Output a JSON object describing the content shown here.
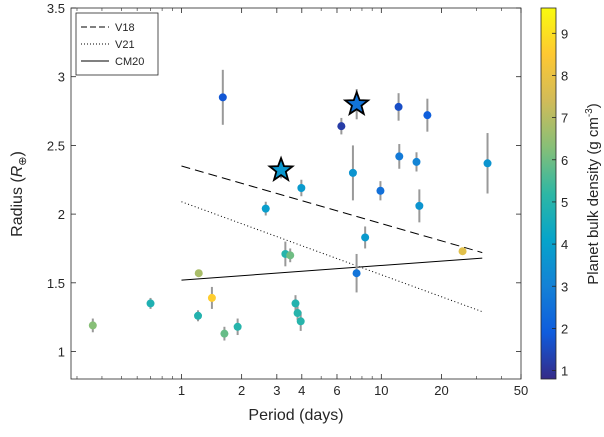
{
  "chart_data": {
    "type": "scatter",
    "xlabel": "Period (days)",
    "ylabel_main": "Radius (",
    "ylabel_sym": "R",
    "ylabel_sub": "⊕",
    "ylabel_close": ")",
    "x_scale": "log",
    "xlim": [
      0.28,
      50
    ],
    "ylim": [
      0.8,
      3.5
    ],
    "x_ticks": [
      1,
      2,
      3,
      4,
      6,
      10,
      20,
      50
    ],
    "x_tick_labels": [
      "1",
      "2",
      "3",
      "4",
      "6",
      "10",
      "20",
      "50"
    ],
    "y_ticks": [
      1,
      1.5,
      2,
      2.5,
      3,
      3.5
    ],
    "y_tick_labels": [
      "1",
      "1.5",
      "2",
      "2.5",
      "3",
      "3.5"
    ],
    "grid": false,
    "legend_position": "top-left",
    "lines": [
      {
        "name": "V18",
        "style": "dashed",
        "x": [
          1,
          32
        ],
        "y": [
          2.35,
          1.72
        ]
      },
      {
        "name": "V21",
        "style": "dotted",
        "x": [
          1,
          32
        ],
        "y": [
          2.09,
          1.29
        ]
      },
      {
        "name": "CM20",
        "style": "solid",
        "x": [
          1,
          32
        ],
        "y": [
          1.52,
          1.68
        ]
      }
    ],
    "colorbar": {
      "label": "Planet bulk density (g cm",
      "label_exp": "-3",
      "label_close": ")",
      "range": [
        0.8,
        9.6
      ],
      "ticks": [
        1,
        2,
        3,
        4,
        5,
        6,
        7,
        8,
        9
      ],
      "tick_labels": [
        "1",
        "2",
        "3",
        "4",
        "5",
        "6",
        "7",
        "8",
        "9"
      ]
    },
    "points": [
      {
        "x": 0.36,
        "y": 1.19,
        "err": 0.05,
        "density": 6.3
      },
      {
        "x": 0.7,
        "y": 1.35,
        "err": 0.04,
        "density": 4.8
      },
      {
        "x": 1.21,
        "y": 1.26,
        "err": 0.04,
        "density": 4.9
      },
      {
        "x": 1.22,
        "y": 1.57,
        "err": 0.02,
        "density": 6.8
      },
      {
        "x": 1.42,
        "y": 1.39,
        "err": 0.08,
        "density": 8.6
      },
      {
        "x": 1.61,
        "y": 2.85,
        "err": 0.2,
        "density": 1.8
      },
      {
        "x": 1.64,
        "y": 1.13,
        "err": 0.05,
        "density": 5.9
      },
      {
        "x": 1.91,
        "y": 1.18,
        "err": 0.06,
        "density": 5.0
      },
      {
        "x": 2.64,
        "y": 2.04,
        "err": 0.05,
        "density": 3.9
      },
      {
        "x": 3.15,
        "y": 2.32,
        "err": 0.06,
        "density": 3.7,
        "star": true
      },
      {
        "x": 3.31,
        "y": 1.71,
        "err": 0.09,
        "density": 5.0
      },
      {
        "x": 3.5,
        "y": 1.7,
        "err": 0.05,
        "density": 6.0
      },
      {
        "x": 3.72,
        "y": 1.35,
        "err": 0.06,
        "density": 4.9
      },
      {
        "x": 3.81,
        "y": 1.28,
        "err": 0.05,
        "density": 5.0
      },
      {
        "x": 3.95,
        "y": 1.22,
        "err": 0.07,
        "density": 5.0
      },
      {
        "x": 3.98,
        "y": 2.19,
        "err": 0.06,
        "density": 3.8
      },
      {
        "x": 6.31,
        "y": 2.64,
        "err": 0.06,
        "density": 1.2
      },
      {
        "x": 7.21,
        "y": 2.3,
        "err": 0.2,
        "density": 3.6
      },
      {
        "x": 7.52,
        "y": 1.57,
        "err": 0.14,
        "density": 2.6
      },
      {
        "x": 7.53,
        "y": 2.8,
        "err": 0.11,
        "density": 2.6,
        "star": true
      },
      {
        "x": 8.3,
        "y": 1.83,
        "err": 0.08,
        "density": 3.8
      },
      {
        "x": 9.9,
        "y": 2.17,
        "err": 0.07,
        "density": 2.5
      },
      {
        "x": 12.2,
        "y": 2.78,
        "err": 0.1,
        "density": 1.6
      },
      {
        "x": 12.3,
        "y": 2.42,
        "err": 0.09,
        "density": 2.8
      },
      {
        "x": 15.0,
        "y": 2.38,
        "err": 0.07,
        "density": 3.1
      },
      {
        "x": 15.5,
        "y": 2.06,
        "err": 0.12,
        "density": 3.6
      },
      {
        "x": 17.0,
        "y": 2.72,
        "err": 0.12,
        "density": 2.0
      },
      {
        "x": 25.5,
        "y": 1.73,
        "err": 0.02,
        "density": 7.8
      },
      {
        "x": 34.0,
        "y": 2.37,
        "err": 0.22,
        "density": 3.6
      }
    ]
  }
}
